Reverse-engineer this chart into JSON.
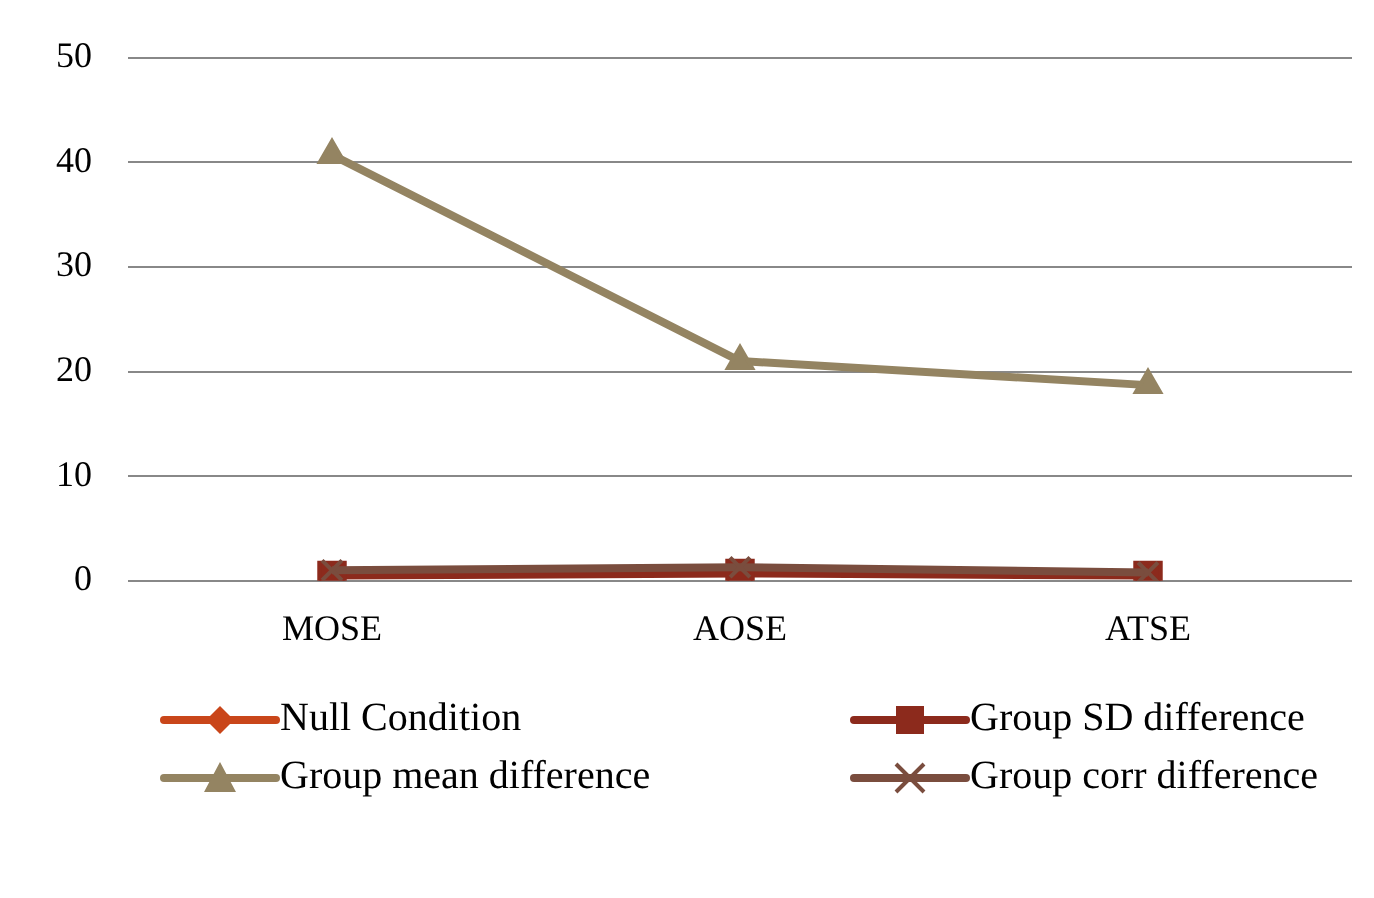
{
  "chart_data": {
    "type": "line",
    "categories": [
      "MOSE",
      "AOSE",
      "ATSE"
    ],
    "series": [
      {
        "name": "Null Condition",
        "color": "#c9461a",
        "marker": "diamond",
        "values": [
          null,
          null,
          null
        ]
      },
      {
        "name": "Group SD difference",
        "color": "#8c2a1c",
        "marker": "square",
        "values": [
          0.5,
          0.7,
          0.5
        ]
      },
      {
        "name": "Group mean difference",
        "color": "#948462",
        "marker": "triangle",
        "values": [
          40.7,
          21.0,
          18.7
        ]
      },
      {
        "name": "Group corr difference",
        "color": "#7a4d3e",
        "marker": "cross",
        "values": [
          1.0,
          1.3,
          0.8
        ]
      }
    ],
    "ylim": [
      0,
      50
    ],
    "yticks": [
      0,
      10,
      20,
      30,
      40,
      50
    ],
    "grid": "y",
    "legend": "bottom"
  }
}
